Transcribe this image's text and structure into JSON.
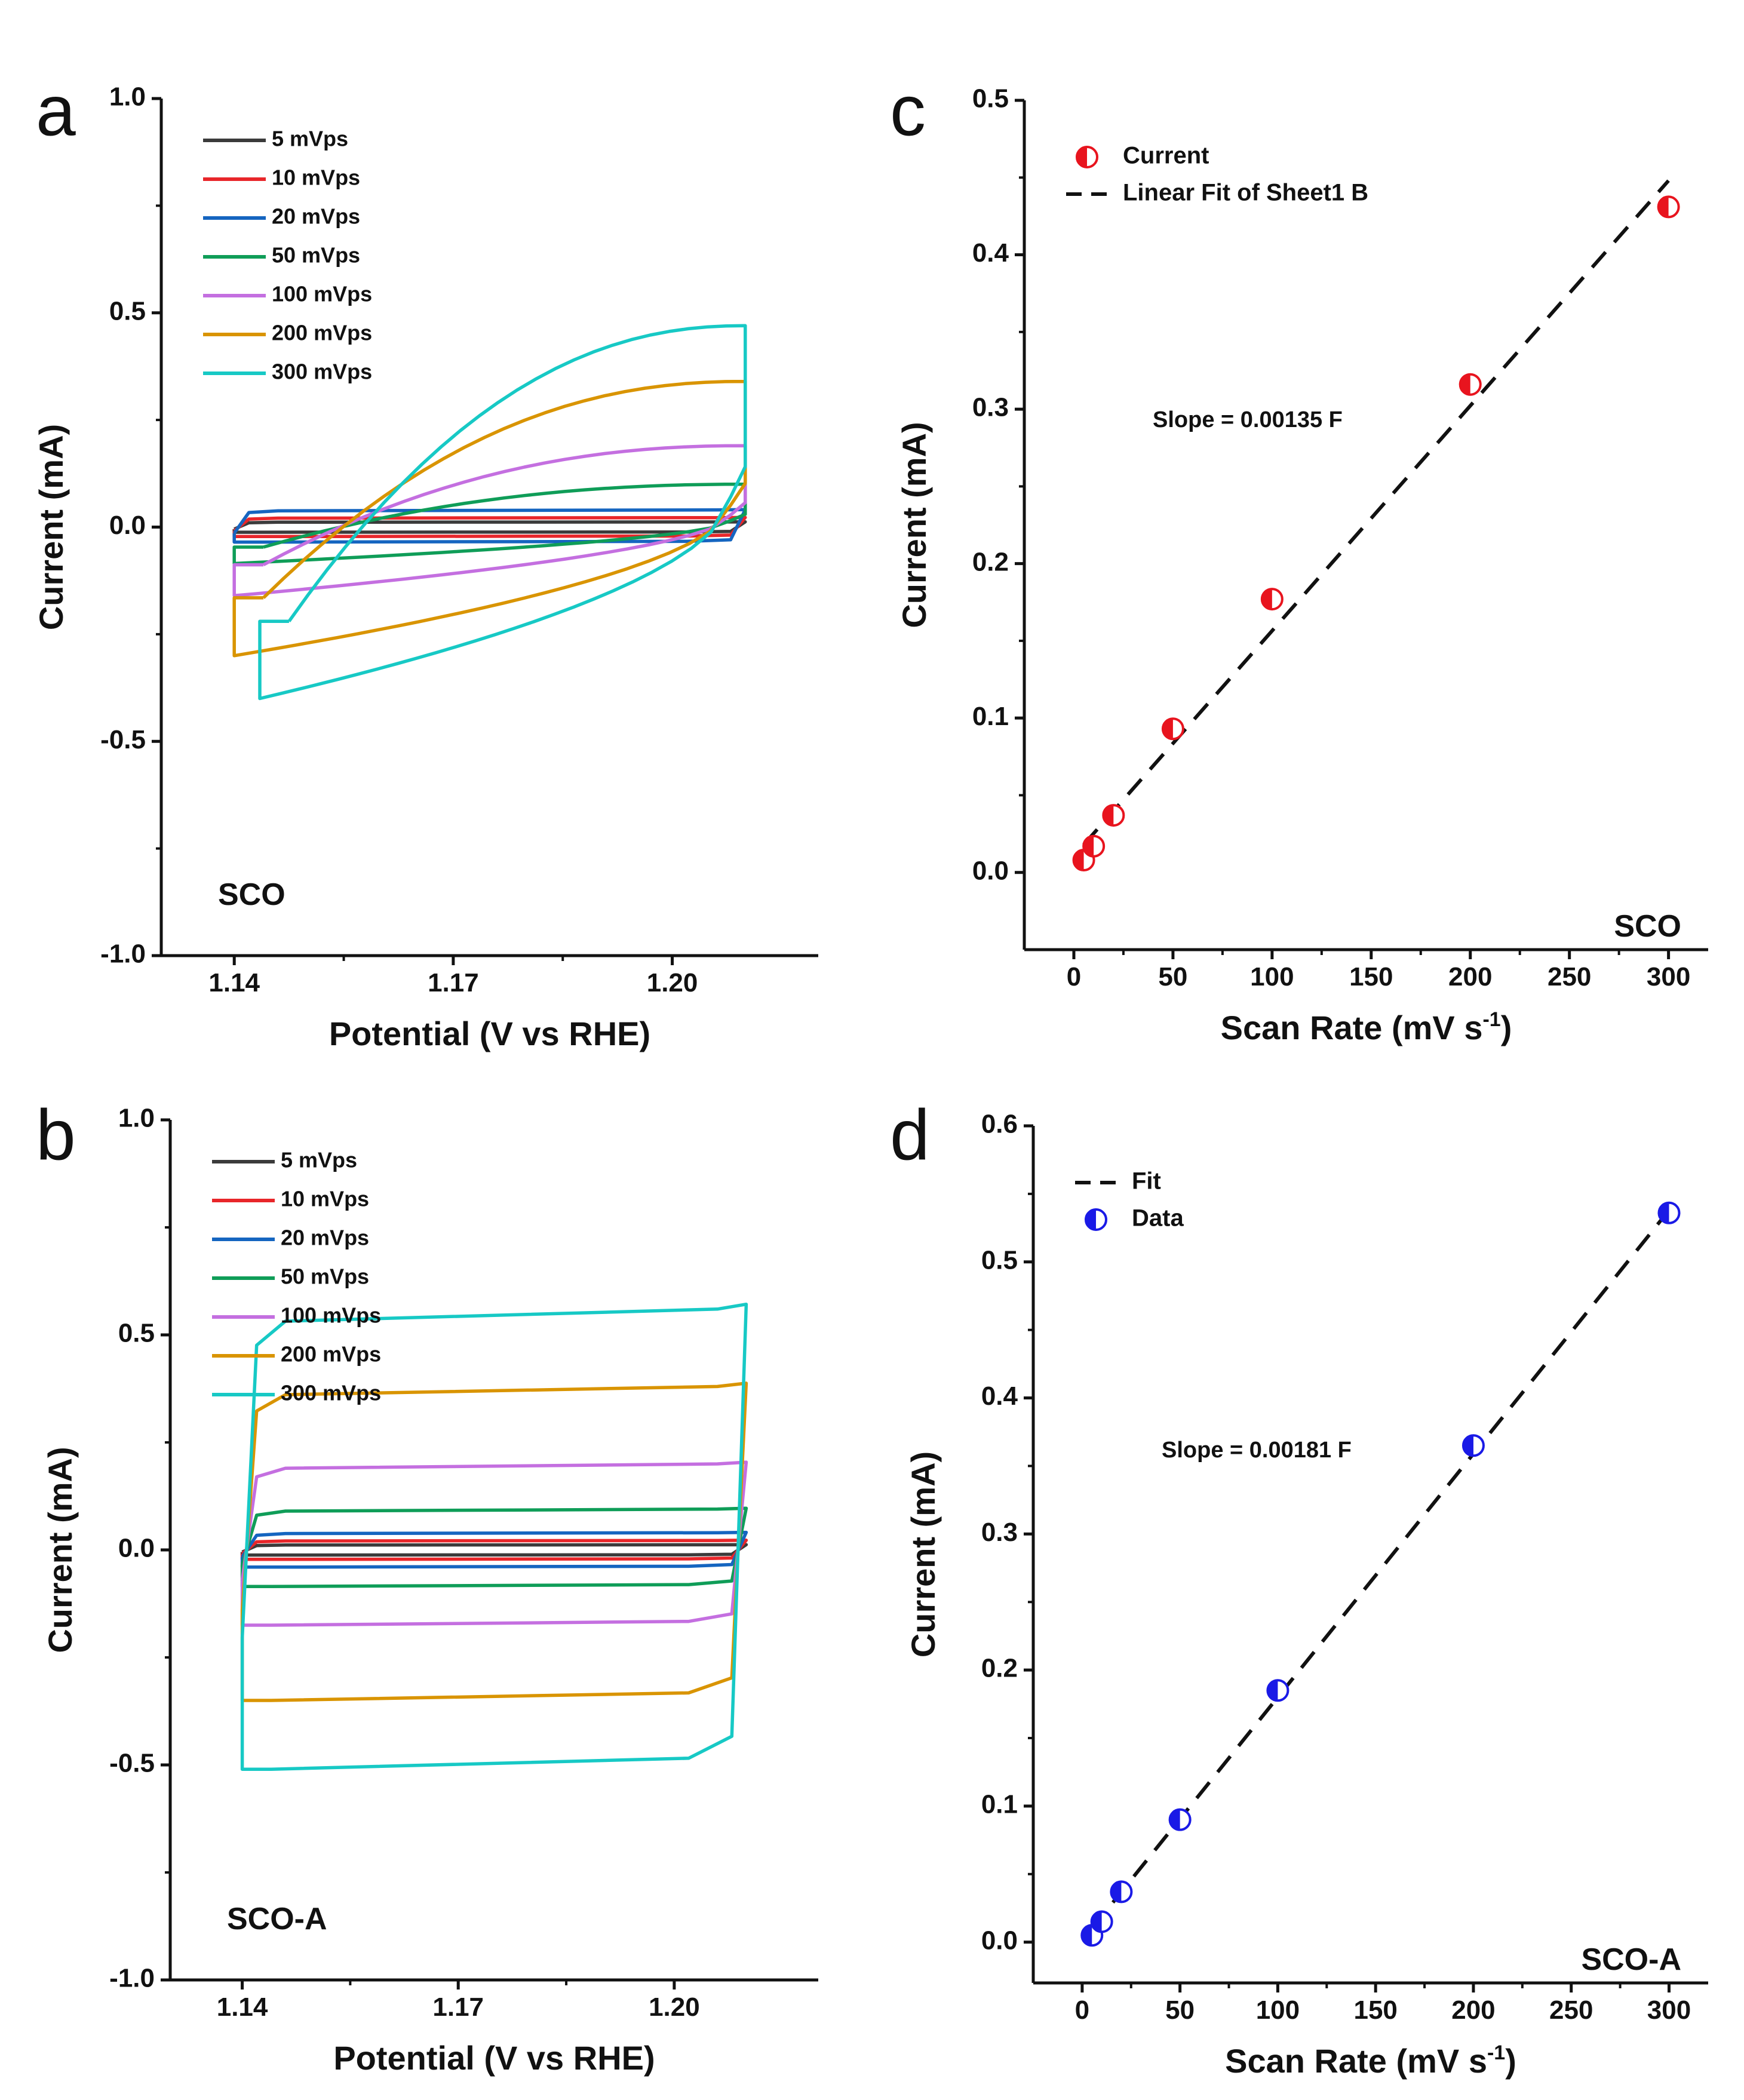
{
  "chart_data": [
    {
      "id": "a",
      "panel_label": "a",
      "type": "line",
      "title": "",
      "xlabel": "Potential (V vs RHE)",
      "ylabel": "Current (mA)",
      "xlim": [
        1.13,
        1.22
      ],
      "ylim": [
        -1.0,
        1.0
      ],
      "xticks": [
        1.14,
        1.17,
        1.2
      ],
      "xtick_labels": [
        "1.14",
        "1.17",
        "1.20"
      ],
      "yticks": [
        1.0,
        0.5,
        0.0,
        -0.5,
        -1.0
      ],
      "ytick_labels": [
        "1.0",
        "0.5",
        "0.0",
        "-0.5",
        "-1.0"
      ],
      "annotation": "SCO",
      "legend_position": "top-left",
      "cv_window": [
        1.14,
        1.21
      ],
      "series": [
        {
          "name": "5 mVps",
          "color": "#3b3b3b",
          "upper": 0.012,
          "lower": -0.012,
          "shape": "rect"
        },
        {
          "name": "10 mVps",
          "color": "#e8262a",
          "upper": 0.022,
          "lower": -0.022,
          "shape": "rect"
        },
        {
          "name": "20 mVps",
          "color": "#1565c0",
          "upper": 0.04,
          "lower": -0.035,
          "shape": "rect"
        },
        {
          "name": "50 mVps",
          "color": "#0f9d58",
          "upper": 0.1,
          "lower": -0.085,
          "shape": "sco"
        },
        {
          "name": "100 mVps",
          "color": "#c46fe0",
          "upper": 0.19,
          "lower": -0.16,
          "shape": "sco"
        },
        {
          "name": "200 mVps",
          "color": "#d99400",
          "upper": 0.34,
          "lower": -0.3,
          "shape": "sco"
        },
        {
          "name": "300 mVps",
          "color": "#17c9c5",
          "upper": 0.47,
          "lower": -0.4,
          "shape": "sco"
        }
      ]
    },
    {
      "id": "b",
      "panel_label": "b",
      "type": "line",
      "title": "",
      "xlabel": "Potential (V vs RHE)",
      "ylabel": "Current (mA)",
      "xlim": [
        1.13,
        1.22
      ],
      "ylim": [
        -1.0,
        1.0
      ],
      "xticks": [
        1.14,
        1.17,
        1.2
      ],
      "xtick_labels": [
        "1.14",
        "1.17",
        "1.20"
      ],
      "yticks": [
        1.0,
        0.5,
        0.0,
        -0.5,
        -1.0
      ],
      "ytick_labels": [
        "1.0",
        "0.5",
        "0.0",
        "-0.5",
        "-1.0"
      ],
      "annotation": "SCO-A",
      "legend_position": "top-left",
      "cv_window": [
        1.14,
        1.21
      ],
      "series": [
        {
          "name": "5 mVps",
          "color": "#3b3b3b",
          "upper": 0.012,
          "lower": -0.012,
          "shape": "rect"
        },
        {
          "name": "10 mVps",
          "color": "#e8262a",
          "upper": 0.022,
          "lower": -0.022,
          "shape": "rect"
        },
        {
          "name": "20 mVps",
          "color": "#1565c0",
          "upper": 0.04,
          "lower": -0.04,
          "shape": "rect"
        },
        {
          "name": "50 mVps",
          "color": "#0f9d58",
          "upper": 0.095,
          "lower": -0.085,
          "shape": "rect"
        },
        {
          "name": "100 mVps",
          "color": "#c46fe0",
          "upper": 0.2,
          "lower": -0.175,
          "shape": "rect"
        },
        {
          "name": "200 mVps",
          "color": "#d99400",
          "upper": 0.38,
          "lower": -0.35,
          "shape": "rect"
        },
        {
          "name": "300 mVps",
          "color": "#17c9c5",
          "upper": 0.56,
          "lower": -0.51,
          "shape": "rect"
        }
      ]
    },
    {
      "id": "c",
      "panel_label": "c",
      "type": "scatter",
      "title": "",
      "xlabel": "Scan Rate (mV s",
      "xlabel_sup": "-1",
      "xlabel_end": ")",
      "ylabel": "Current (mA)",
      "xlim": [
        -25,
        320
      ],
      "ylim": [
        -0.05,
        0.5
      ],
      "xticks": [
        0,
        50,
        100,
        150,
        200,
        250,
        300
      ],
      "xtick_labels": [
        "0",
        "50",
        "100",
        "150",
        "200",
        "250",
        "300"
      ],
      "yticks": [
        0.0,
        0.1,
        0.2,
        0.3,
        0.4,
        0.5
      ],
      "ytick_labels": [
        "0.0",
        "0.1",
        "0.2",
        "0.3",
        "0.4",
        "0.5"
      ],
      "annotation": "SCO",
      "slope_text": "Slope = 0.00135 F",
      "marker_color": "#e8141e",
      "legend_position": "top-left",
      "legend": [
        {
          "label": "Current",
          "kind": "marker"
        },
        {
          "label": "Linear Fit of Sheet1 B",
          "kind": "dash"
        }
      ],
      "x": [
        5,
        10,
        20,
        50,
        100,
        200,
        300
      ],
      "y": [
        0.008,
        0.017,
        0.037,
        0.093,
        0.177,
        0.316,
        0.431
      ],
      "fit": {
        "x": [
          5,
          300
        ],
        "y": [
          0.018,
          0.448
        ]
      }
    },
    {
      "id": "d",
      "panel_label": "d",
      "type": "scatter",
      "title": "",
      "xlabel": "Scan Rate (mV s",
      "xlabel_sup": "-1",
      "xlabel_end": ")",
      "ylabel": "Current (mA)",
      "xlim": [
        -25,
        320
      ],
      "ylim": [
        -0.03,
        0.6
      ],
      "xticks": [
        0,
        50,
        100,
        150,
        200,
        250,
        300
      ],
      "xtick_labels": [
        "0",
        "50",
        "100",
        "150",
        "200",
        "250",
        "300"
      ],
      "yticks": [
        0.0,
        0.1,
        0.2,
        0.3,
        0.4,
        0.5,
        0.6
      ],
      "ytick_labels": [
        "0.0",
        "0.1",
        "0.2",
        "0.3",
        "0.4",
        "0.5",
        "0.6"
      ],
      "annotation": "SCO-A",
      "slope_text": "Slope = 0.00181 F",
      "marker_color": "#1a1ae6",
      "legend_position": "top-left",
      "legend": [
        {
          "label": "Fit",
          "kind": "dash"
        },
        {
          "label": "Data",
          "kind": "marker"
        }
      ],
      "x": [
        5,
        10,
        20,
        50,
        100,
        200,
        300
      ],
      "y": [
        0.005,
        0.015,
        0.037,
        0.09,
        0.185,
        0.365,
        0.536
      ],
      "fit": {
        "x": [
          5,
          300
        ],
        "y": [
          0.01,
          0.538
        ]
      }
    }
  ]
}
